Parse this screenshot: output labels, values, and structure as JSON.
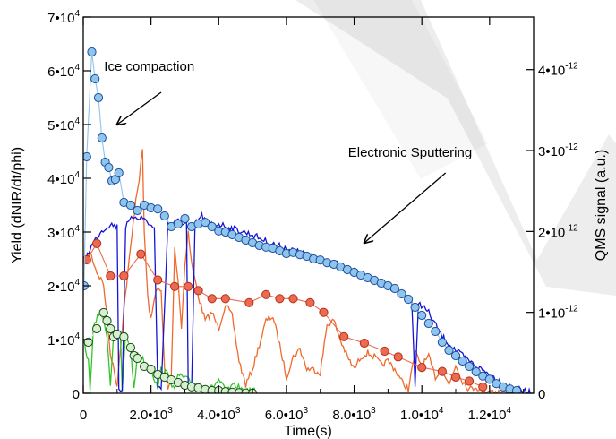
{
  "chart_data": {
    "type": "line",
    "xlabel": "Time(s)",
    "ylabel": "Yield (dNIR/dt/phi)",
    "y2label": "QMS signal (a.u.)",
    "xlim": [
      0,
      13300
    ],
    "ylim": [
      0,
      70000
    ],
    "y2lim": [
      0,
      4.65e-12
    ],
    "grid": false,
    "x_ticks": [
      {
        "value": 0,
        "mant": "0",
        "exp": ""
      },
      {
        "value": 2000,
        "mant": "2.0•10",
        "exp": "3"
      },
      {
        "value": 4000,
        "mant": "4.0•10",
        "exp": "3"
      },
      {
        "value": 6000,
        "mant": "6.0•10",
        "exp": "3"
      },
      {
        "value": 8000,
        "mant": "8.0•10",
        "exp": "3"
      },
      {
        "value": 10000,
        "mant": "1.0•10",
        "exp": "4"
      },
      {
        "value": 12000,
        "mant": "1.2•10",
        "exp": "4"
      }
    ],
    "y_ticks": [
      {
        "value": 0,
        "mant": "0",
        "exp": ""
      },
      {
        "value": 10000,
        "mant": "1•10",
        "exp": "4"
      },
      {
        "value": 20000,
        "mant": "2•10",
        "exp": "4"
      },
      {
        "value": 30000,
        "mant": "3•10",
        "exp": "4"
      },
      {
        "value": 40000,
        "mant": "4•10",
        "exp": "4"
      },
      {
        "value": 50000,
        "mant": "5•10",
        "exp": "4"
      },
      {
        "value": 60000,
        "mant": "6•10",
        "exp": "4"
      },
      {
        "value": 70000,
        "mant": "7•10",
        "exp": "4"
      }
    ],
    "y2_ticks": [
      {
        "value": 0,
        "mant": "0",
        "exp": ""
      },
      {
        "value": 1e-12,
        "mant": "1•10",
        "exp": "-12"
      },
      {
        "value": 2e-12,
        "mant": "2•10",
        "exp": "-12"
      },
      {
        "value": 3e-12,
        "mant": "3•10",
        "exp": "-12"
      },
      {
        "value": 4e-12,
        "mant": "4•10",
        "exp": "-12"
      }
    ],
    "annotations": [
      {
        "text": "Ice compaction",
        "x": 1950,
        "y": 60000,
        "arrow_from": [
          2300,
          56000
        ],
        "arrow_to": [
          1000,
          50000
        ]
      },
      {
        "text": "Electronic Sputtering",
        "x": 9650,
        "y": 44000,
        "arrow_from": [
          10700,
          41000
        ],
        "arrow_to": [
          8300,
          28000
        ]
      }
    ],
    "series": [
      {
        "axis": "left",
        "style": "markers",
        "color": "#1e4fa0",
        "fill": "#8fc4ec",
        "points": [
          [
            20,
            20000
          ],
          [
            100,
            44000
          ],
          [
            250,
            63500
          ],
          [
            350,
            58500
          ],
          [
            450,
            55000
          ],
          [
            550,
            47500
          ],
          [
            650,
            43000
          ],
          [
            750,
            42000
          ],
          [
            850,
            39500
          ],
          [
            950,
            39800
          ],
          [
            1050,
            41000
          ],
          [
            1200,
            35500
          ],
          [
            1400,
            35000
          ],
          [
            1600,
            34000
          ],
          [
            1800,
            35000
          ],
          [
            2000,
            34500
          ],
          [
            2200,
            34300
          ],
          [
            2400,
            33000
          ],
          [
            2600,
            31000
          ],
          [
            2800,
            31500
          ],
          [
            3000,
            32500
          ],
          [
            3200,
            31000
          ],
          [
            3400,
            31500
          ],
          [
            3600,
            31800
          ],
          [
            3800,
            31000
          ],
          [
            4000,
            30200
          ],
          [
            4200,
            30000
          ],
          [
            4400,
            29500
          ],
          [
            4600,
            29000
          ],
          [
            4800,
            28500
          ],
          [
            5000,
            28000
          ],
          [
            5200,
            27500
          ],
          [
            5400,
            27200
          ],
          [
            5600,
            27000
          ],
          [
            5800,
            26500
          ],
          [
            6000,
            26000
          ],
          [
            6200,
            26200
          ],
          [
            6400,
            25800
          ],
          [
            6600,
            25500
          ],
          [
            6800,
            25000
          ],
          [
            7000,
            24800
          ],
          [
            7200,
            24300
          ],
          [
            7400,
            24000
          ],
          [
            7600,
            23500
          ],
          [
            7800,
            23000
          ],
          [
            8000,
            22500
          ],
          [
            8200,
            22000
          ],
          [
            8400,
            21500
          ],
          [
            8600,
            21000
          ],
          [
            8800,
            20500
          ],
          [
            9000,
            20000
          ],
          [
            9200,
            19500
          ],
          [
            9400,
            18500
          ],
          [
            9600,
            17500
          ],
          [
            9800,
            16000
          ],
          [
            10000,
            14500
          ],
          [
            10200,
            13000
          ],
          [
            10400,
            11500
          ],
          [
            10600,
            9500
          ],
          [
            10800,
            8000
          ],
          [
            11000,
            7000
          ],
          [
            11200,
            6000
          ],
          [
            11400,
            5000
          ],
          [
            11600,
            4000
          ],
          [
            11800,
            3200
          ],
          [
            12000,
            2600
          ],
          [
            12200,
            1800
          ],
          [
            12400,
            1200
          ],
          [
            12600,
            800
          ],
          [
            12800,
            500
          ]
        ]
      },
      {
        "axis": "left",
        "style": "noisy-line",
        "color": "#1414d8",
        "points": [
          [
            0,
            24000
          ],
          [
            200,
            27000
          ],
          [
            500,
            30000
          ],
          [
            800,
            31500
          ],
          [
            1000,
            31000
          ],
          [
            1050,
            1000
          ],
          [
            1150,
            500
          ],
          [
            1250,
            31000
          ],
          [
            1500,
            33000
          ],
          [
            1800,
            32500
          ],
          [
            2100,
            30500
          ],
          [
            2200,
            1500
          ],
          [
            2300,
            500
          ],
          [
            2500,
            31500
          ],
          [
            2800,
            32000
          ],
          [
            3050,
            31500
          ],
          [
            3100,
            1000
          ],
          [
            3200,
            500
          ],
          [
            3300,
            31500
          ],
          [
            3500,
            33000
          ],
          [
            3700,
            31500
          ],
          [
            4000,
            31500
          ],
          [
            4500,
            30500
          ],
          [
            5000,
            29500
          ],
          [
            5500,
            28000
          ],
          [
            6000,
            27000
          ],
          [
            6500,
            26000
          ],
          [
            7000,
            25000
          ],
          [
            7500,
            24000
          ],
          [
            8000,
            22500
          ],
          [
            8500,
            21500
          ],
          [
            9000,
            20000
          ],
          [
            9400,
            18500
          ],
          [
            9700,
            17500
          ],
          [
            9800,
            800
          ],
          [
            9900,
            17000
          ],
          [
            10200,
            15000
          ],
          [
            10600,
            10500
          ],
          [
            11000,
            8000
          ],
          [
            11500,
            5500
          ],
          [
            12000,
            3500
          ],
          [
            12500,
            1500
          ],
          [
            13000,
            400
          ],
          [
            13300,
            0
          ]
        ]
      },
      {
        "axis": "right",
        "style": "markers",
        "color": "#b3301c",
        "fill": "#ec6b50",
        "points": [
          [
            100,
            1.65e-12
          ],
          [
            400,
            1.85e-12
          ],
          [
            800,
            1.45e-12
          ],
          [
            1200,
            1.45e-12
          ],
          [
            1700,
            1.72e-12
          ],
          [
            2200,
            1.4e-12
          ],
          [
            2700,
            1.32e-12
          ],
          [
            3100,
            1.32e-12
          ],
          [
            3400,
            1.27e-12
          ],
          [
            3800,
            1.17e-12
          ],
          [
            4200,
            1.17e-12
          ],
          [
            4900,
            1.12e-12
          ],
          [
            5400,
            1.22e-12
          ],
          [
            5800,
            1.17e-12
          ],
          [
            6200,
            1.17e-12
          ],
          [
            6700,
            1.12e-12
          ],
          [
            7100,
            1e-12
          ],
          [
            7700,
            7e-13
          ],
          [
            8300,
            6.2e-13
          ],
          [
            8900,
            5.2e-13
          ],
          [
            9300,
            4.5e-13
          ],
          [
            10000,
            3.2e-13
          ],
          [
            10600,
            2.7e-13
          ],
          [
            11000,
            2e-13
          ],
          [
            11400,
            1.5e-13
          ],
          [
            11800,
            8e-14
          ]
        ]
      },
      {
        "axis": "right",
        "style": "noisy-line",
        "color": "#ef6a2e",
        "points": [
          [
            0,
            1.6e-12
          ],
          [
            200,
            1.75e-12
          ],
          [
            400,
            1.5e-12
          ],
          [
            600,
            1.35e-12
          ],
          [
            800,
            5e-13
          ],
          [
            1000,
            1e-13
          ],
          [
            1200,
            1.05e-12
          ],
          [
            1400,
            1.8e-12
          ],
          [
            1550,
            2.4e-12
          ],
          [
            1650,
            2.65e-12
          ],
          [
            1750,
            3e-12
          ],
          [
            1800,
            2e-12
          ],
          [
            1900,
            1.2e-12
          ],
          [
            2000,
            9e-13
          ],
          [
            2150,
            1.3e-12
          ],
          [
            2300,
            1.25e-12
          ],
          [
            2400,
            3e-13
          ],
          [
            2500,
            5e-14
          ],
          [
            2600,
            2e-13
          ],
          [
            2700,
            1.8e-12
          ],
          [
            2800,
            1.4e-12
          ],
          [
            2900,
            8e-13
          ],
          [
            3000,
            1.6e-12
          ],
          [
            3100,
            2e-12
          ],
          [
            3200,
            1.6e-12
          ],
          [
            3400,
            1.2e-12
          ],
          [
            3600,
            9e-13
          ],
          [
            3800,
            1e-12
          ],
          [
            4000,
            8e-13
          ],
          [
            4200,
            1.1e-12
          ],
          [
            4400,
            9.5e-13
          ],
          [
            4600,
            4e-13
          ],
          [
            4800,
            1e-13
          ],
          [
            5000,
            3e-13
          ],
          [
            5200,
            6e-13
          ],
          [
            5400,
            9e-13
          ],
          [
            5600,
            9.5e-13
          ],
          [
            5800,
            6e-13
          ],
          [
            6000,
            2e-13
          ],
          [
            6200,
            4.5e-13
          ],
          [
            6400,
            5.5e-13
          ],
          [
            6600,
            3e-13
          ],
          [
            6800,
            3e-13
          ],
          [
            7000,
            2.5e-13
          ],
          [
            7200,
            8.5e-13
          ],
          [
            7400,
            9e-13
          ],
          [
            7600,
            6.5e-13
          ],
          [
            7800,
            4.5e-13
          ],
          [
            8000,
            3e-13
          ],
          [
            8200,
            4.5e-13
          ],
          [
            8400,
            5e-13
          ],
          [
            8600,
            4.5e-13
          ],
          [
            8800,
            3.5e-13
          ],
          [
            9000,
            4e-13
          ],
          [
            9200,
            3e-13
          ],
          [
            9400,
            1.5e-13
          ],
          [
            9600,
            5e-14
          ],
          [
            9800,
            5e-13
          ],
          [
            10000,
            3.5e-13
          ],
          [
            10200,
            4.5e-13
          ],
          [
            10400,
            2e-13
          ],
          [
            10600,
            3e-13
          ],
          [
            10800,
            1e-13
          ],
          [
            11000,
            3.5e-13
          ],
          [
            11200,
            1.5e-13
          ],
          [
            11400,
            5e-14
          ],
          [
            11600,
            8e-14
          ],
          [
            11800,
            2e-14
          ],
          [
            12000,
            4e-14
          ],
          [
            12400,
            1e-14
          ],
          [
            13000,
            0
          ]
        ]
      },
      {
        "axis": "left",
        "style": "markers",
        "color": "#1a4a1a",
        "fill": "#d6f0d0",
        "points": [
          [
            150,
            9500
          ],
          [
            400,
            12000
          ],
          [
            600,
            15000
          ],
          [
            700,
            13500
          ],
          [
            800,
            12000
          ],
          [
            900,
            10500
          ],
          [
            1000,
            11000
          ],
          [
            1200,
            10500
          ],
          [
            1400,
            8500
          ],
          [
            1500,
            7000
          ],
          [
            1600,
            6500
          ],
          [
            1800,
            5000
          ],
          [
            2000,
            4500
          ],
          [
            2200,
            3500
          ],
          [
            2400,
            3000
          ],
          [
            2600,
            2500
          ],
          [
            2800,
            2000
          ],
          [
            3000,
            1500
          ],
          [
            3200,
            1200
          ],
          [
            3400,
            1000
          ],
          [
            3600,
            700
          ],
          [
            3800,
            500
          ],
          [
            4000,
            500
          ],
          [
            4200,
            300
          ],
          [
            4400,
            200
          ],
          [
            4600,
            100
          ],
          [
            4800,
            50
          ],
          [
            5000,
            20
          ]
        ]
      },
      {
        "axis": "left",
        "style": "noisy-line",
        "color": "#33c42a",
        "points": [
          [
            0,
            10000
          ],
          [
            150,
            6000
          ],
          [
            200,
            1000
          ],
          [
            300,
            12000
          ],
          [
            500,
            15500
          ],
          [
            700,
            11000
          ],
          [
            800,
            1500
          ],
          [
            900,
            11500
          ],
          [
            1100,
            10500
          ],
          [
            1150,
            500
          ],
          [
            1250,
            11000
          ],
          [
            1400,
            8500
          ],
          [
            1500,
            500
          ],
          [
            1600,
            7500
          ],
          [
            1800,
            6000
          ],
          [
            2000,
            4500
          ],
          [
            2200,
            1000
          ],
          [
            2300,
            4500
          ],
          [
            2500,
            3500
          ],
          [
            2700,
            500
          ],
          [
            2800,
            3500
          ],
          [
            3000,
            2800
          ],
          [
            3200,
            2000
          ],
          [
            3500,
            1500
          ],
          [
            3800,
            1000
          ],
          [
            4000,
            2500
          ],
          [
            4200,
            500
          ],
          [
            4500,
            1500
          ],
          [
            4800,
            300
          ],
          [
            5000,
            800
          ],
          [
            5100,
            0
          ]
        ]
      }
    ]
  }
}
